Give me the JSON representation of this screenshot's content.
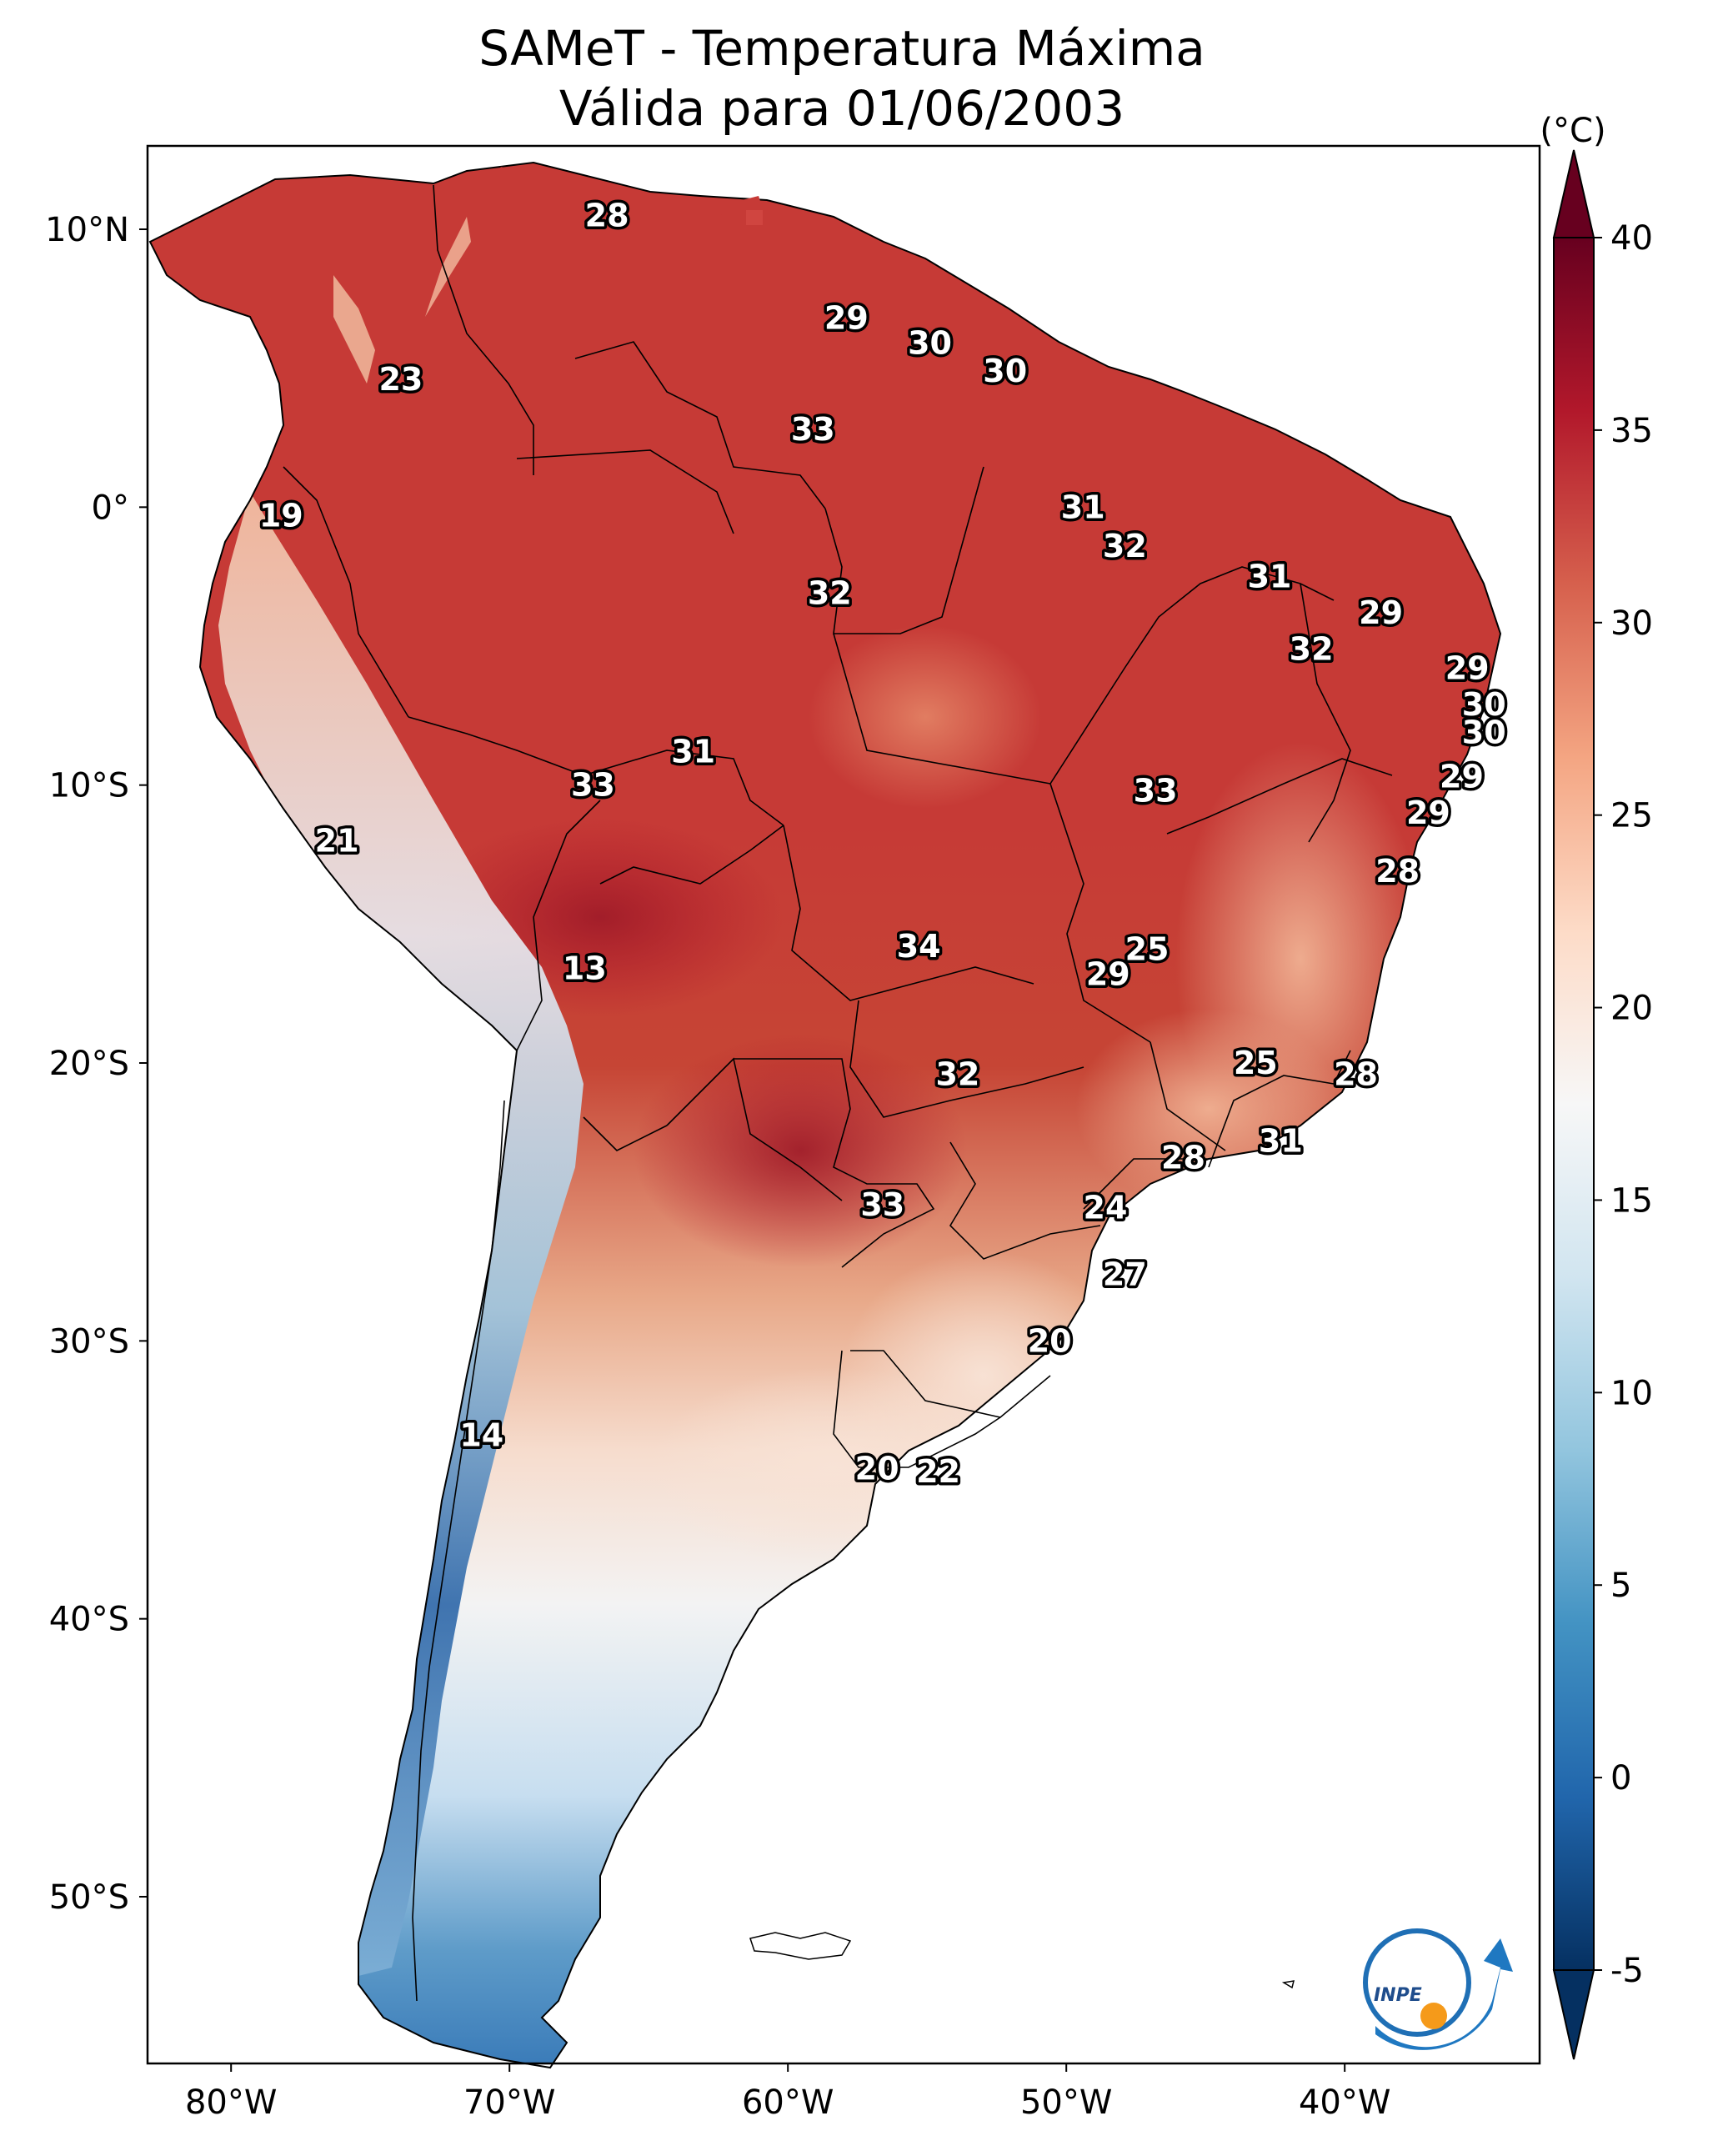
{
  "figure": {
    "title_line1": "SAMeT - Temperatura Máxima",
    "title_line2": "Válida para 01/06/2003"
  },
  "map": {
    "lat_labels": [
      "10°N",
      "0°",
      "10°S",
      "20°S",
      "30°S",
      "40°S",
      "50°S"
    ],
    "lon_labels": [
      "80°W",
      "70°W",
      "60°W",
      "50°W",
      "40°W"
    ],
    "contour_labels": [
      {
        "value": "28",
        "lon": -66.5,
        "lat": 10.5
      },
      {
        "value": "29",
        "lon": -57.9,
        "lat": 6.8
      },
      {
        "value": "30",
        "lon": -54.9,
        "lat": 5.9
      },
      {
        "value": "30",
        "lon": -52.2,
        "lat": 4.9
      },
      {
        "value": "23",
        "lon": -73.9,
        "lat": 4.6
      },
      {
        "value": "33",
        "lon": -59.1,
        "lat": 2.8
      },
      {
        "value": "31",
        "lon": -49.4,
        "lat": 0.0
      },
      {
        "value": "19",
        "lon": -78.2,
        "lat": -0.3
      },
      {
        "value": "32",
        "lon": -47.9,
        "lat": -1.4
      },
      {
        "value": "31",
        "lon": -42.7,
        "lat": -2.5
      },
      {
        "value": "32",
        "lon": -58.5,
        "lat": -3.1
      },
      {
        "value": "29",
        "lon": -38.7,
        "lat": -3.8
      },
      {
        "value": "32",
        "lon": -41.2,
        "lat": -5.1
      },
      {
        "value": "29",
        "lon": -35.6,
        "lat": -5.8
      },
      {
        "value": "30",
        "lon": -35.0,
        "lat": -7.1
      },
      {
        "value": "30",
        "lon": -35.0,
        "lat": -8.1
      },
      {
        "value": "31",
        "lon": -63.4,
        "lat": -8.8
      },
      {
        "value": "29",
        "lon": -35.8,
        "lat": -9.7
      },
      {
        "value": "33",
        "lon": -67.0,
        "lat": -10.0
      },
      {
        "value": "33",
        "lon": -46.8,
        "lat": -10.2
      },
      {
        "value": "29",
        "lon": -37.0,
        "lat": -11.0
      },
      {
        "value": "21",
        "lon": -76.2,
        "lat": -12.0
      },
      {
        "value": "28",
        "lon": -38.1,
        "lat": -13.1
      },
      {
        "value": "34",
        "lon": -55.3,
        "lat": -15.8
      },
      {
        "value": "25",
        "lon": -47.1,
        "lat": -15.9
      },
      {
        "value": "13",
        "lon": -67.3,
        "lat": -16.6
      },
      {
        "value": "29",
        "lon": -48.5,
        "lat": -16.8
      },
      {
        "value": "25",
        "lon": -43.2,
        "lat": -20.0
      },
      {
        "value": "32",
        "lon": -53.9,
        "lat": -20.4
      },
      {
        "value": "28",
        "lon": -39.6,
        "lat": -20.4
      },
      {
        "value": "31",
        "lon": -42.3,
        "lat": -22.8
      },
      {
        "value": "28",
        "lon": -45.8,
        "lat": -23.4
      },
      {
        "value": "33",
        "lon": -56.6,
        "lat": -25.1
      },
      {
        "value": "24",
        "lon": -48.6,
        "lat": -25.2
      },
      {
        "value": "27",
        "lon": -47.9,
        "lat": -27.6
      },
      {
        "value": "20",
        "lon": -50.6,
        "lat": -30.0
      },
      {
        "value": "14",
        "lon": -71.0,
        "lat": -33.4
      },
      {
        "value": "20",
        "lon": -56.8,
        "lat": -34.6
      },
      {
        "value": "22",
        "lon": -54.6,
        "lat": -34.7
      }
    ]
  },
  "colorbar": {
    "unit_label": "(°C)",
    "tick_labels": [
      "40",
      "35",
      "30",
      "25",
      "20",
      "15",
      "10",
      "5",
      "0",
      "-5"
    ],
    "tick_values": [
      40,
      35,
      30,
      25,
      20,
      15,
      10,
      5,
      0,
      -5
    ],
    "range": [
      -5,
      40
    ],
    "colormap_stops": [
      "#053061",
      "#2166ac",
      "#4393c3",
      "#92c5de",
      "#d1e5f0",
      "#f7f7f7",
      "#fddbc7",
      "#f4a582",
      "#d6604d",
      "#b2182b",
      "#67001f"
    ]
  },
  "chart_data": {
    "type": "heatmap",
    "title": "SAMeT - Temperatura Máxima Válida para 01/06/2003",
    "variable": "Maximum temperature",
    "units": "°C",
    "color_range": [
      -5,
      40
    ],
    "lon_range": [
      -83,
      -33
    ],
    "lat_range": [
      -56,
      13
    ],
    "xlabel": "",
    "ylabel": ""
  }
}
